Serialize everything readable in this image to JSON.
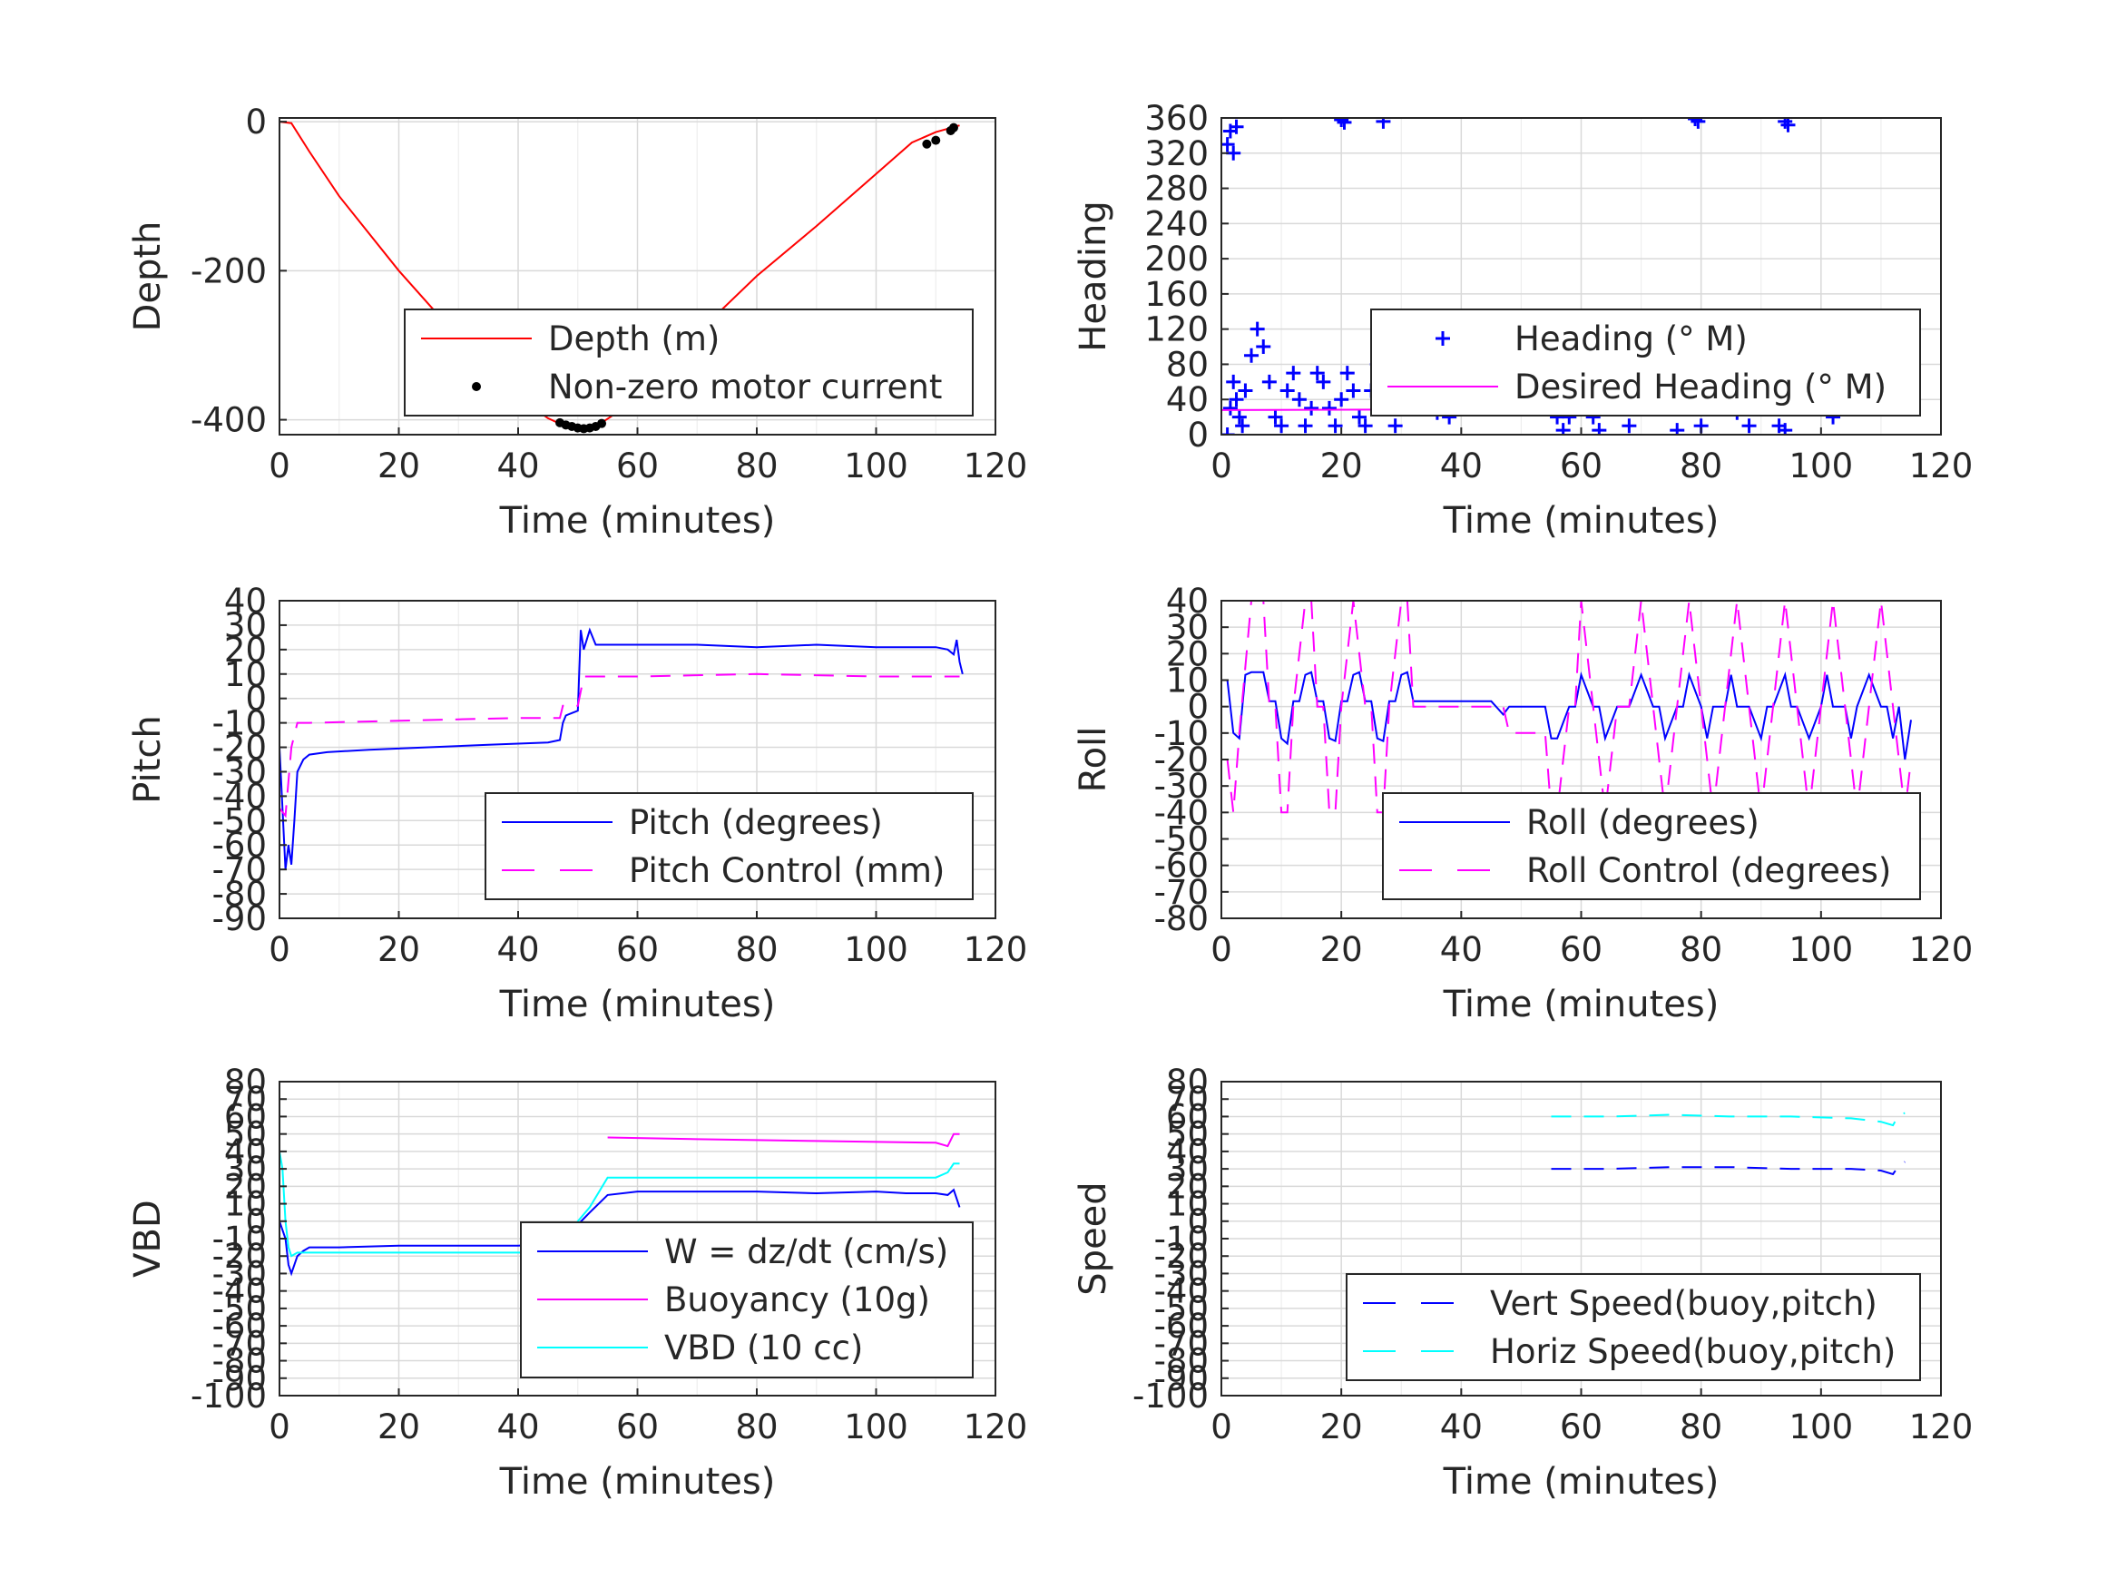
{
  "chart_data": [
    {
      "type": "line",
      "xlabel": "Time (minutes)",
      "ylabel": "Depth",
      "xlim": [
        0,
        120
      ],
      "ylim": [
        -420,
        5
      ],
      "xticks": [
        0,
        20,
        40,
        60,
        80,
        100,
        120
      ],
      "yticks": [
        0,
        -200,
        -400
      ],
      "grid": true,
      "legend_position": "lower-right",
      "series": [
        {
          "name": "Depth (m)",
          "style": "line",
          "color": "#ff0000",
          "x": [
            0,
            2,
            5,
            10,
            20,
            30,
            40,
            45,
            48,
            50,
            52,
            54,
            57,
            60,
            70,
            80,
            90,
            100,
            106,
            110,
            114
          ],
          "y": [
            0,
            -2,
            -40,
            -100,
            -200,
            -290,
            -370,
            -398,
            -409,
            -412,
            -411,
            -404,
            -388,
            -362,
            -284,
            -207,
            -140,
            -70,
            -28,
            -14,
            -5
          ]
        },
        {
          "name": "Non-zero motor current",
          "style": "marker",
          "color": "#000000",
          "x": [
            47,
            48,
            49,
            50,
            51,
            52,
            53,
            54,
            108.5,
            110,
            112.5,
            113
          ],
          "y": [
            -404,
            -407,
            -409,
            -411,
            -412,
            -411,
            -409,
            -405,
            -30,
            -25,
            -12,
            -8
          ]
        }
      ]
    },
    {
      "type": "scatter",
      "xlabel": "Time (minutes)",
      "ylabel": "Heading",
      "xlim": [
        0,
        120
      ],
      "ylim": [
        0,
        360
      ],
      "xticks": [
        0,
        20,
        40,
        60,
        80,
        100,
        120
      ],
      "yticks": [
        0,
        40,
        80,
        120,
        160,
        200,
        240,
        280,
        320,
        360
      ],
      "grid": true,
      "legend_position": "lower-right",
      "series": [
        {
          "name": "Heading (° M)",
          "style": "marker",
          "color": "#0000ff",
          "x": [
            1,
            1.5,
            2,
            2.5,
            3,
            3.5,
            4,
            5,
            6,
            7,
            8,
            9,
            10,
            11,
            12,
            13,
            14,
            15,
            16,
            17,
            18,
            19,
            20,
            21,
            22,
            23,
            24,
            25,
            26,
            27,
            28,
            29,
            30,
            31,
            32,
            34,
            36,
            38,
            40,
            42,
            44,
            46,
            48,
            50,
            52,
            53,
            54,
            55,
            56,
            57,
            58,
            59,
            60,
            61,
            62,
            63,
            64,
            65,
            66,
            67,
            68,
            70,
            72,
            74,
            76,
            78,
            79,
            80,
            82,
            84,
            86,
            88,
            90,
            92,
            93,
            94,
            96,
            98,
            100,
            102,
            104,
            106,
            108,
            110,
            112,
            114,
            20,
            20.5,
            27,
            79,
            79.5,
            94,
            94.5,
            1,
            1.5,
            2,
            2.5
          ],
          "y": [
            0,
            30,
            60,
            40,
            20,
            10,
            50,
            90,
            120,
            100,
            60,
            20,
            10,
            50,
            70,
            40,
            10,
            30,
            70,
            60,
            30,
            10,
            40,
            70,
            50,
            20,
            10,
            50,
            80,
            60,
            30,
            10,
            60,
            95,
            80,
            40,
            25,
            20,
            30,
            40,
            35,
            30,
            40,
            70,
            100,
            110,
            90,
            50,
            20,
            5,
            20,
            60,
            80,
            50,
            20,
            5,
            30,
            70,
            80,
            40,
            10,
            60,
            75,
            30,
            5,
            40,
            60,
            10,
            40,
            60,
            25,
            10,
            60,
            30,
            10,
            5,
            40,
            70,
            50,
            20,
            40,
            70,
            30,
            50,
            40,
            60,
            358,
            355,
            356,
            359,
            356,
            356,
            352,
            330,
            345,
            320,
            350
          ]
        },
        {
          "name": "Desired Heading (° M)",
          "style": "line",
          "color": "#ff00ff",
          "x": [
            0,
            114
          ],
          "y": [
            28,
            30
          ]
        }
      ]
    },
    {
      "type": "line",
      "xlabel": "Time (minutes)",
      "ylabel": "Pitch",
      "xlim": [
        0,
        120
      ],
      "ylim": [
        -90,
        40
      ],
      "xticks": [
        0,
        20,
        40,
        60,
        80,
        100,
        120
      ],
      "yticks": [
        40,
        30,
        20,
        10,
        0,
        -10,
        -20,
        -30,
        -40,
        -50,
        -60,
        -70,
        -80,
        -90
      ],
      "grid": true,
      "legend_position": "lower-right",
      "series": [
        {
          "name": "Pitch (degrees)",
          "style": "line",
          "color": "#0000ff",
          "x": [
            0,
            0.5,
            1,
            1.5,
            2,
            2.5,
            3,
            4,
            5,
            8,
            15,
            25,
            35,
            45,
            47,
            47.5,
            48,
            49,
            50,
            50.5,
            51,
            52,
            53,
            55,
            60,
            70,
            80,
            90,
            100,
            105,
            110,
            112,
            113,
            113.5,
            114,
            114.5
          ],
          "y": [
            -20,
            -45,
            -70,
            -60,
            -68,
            -50,
            -30,
            -25,
            -23,
            -22,
            -21,
            -20,
            -19,
            -18,
            -17,
            -10,
            -7,
            -6,
            -5,
            28,
            20,
            28,
            22,
            22,
            22,
            22,
            21,
            22,
            21,
            21,
            21,
            20,
            18,
            24,
            15,
            10
          ]
        },
        {
          "name": "Pitch Control (mm)",
          "style": "dashed",
          "color": "#ff00ff",
          "x": [
            0,
            1,
            2,
            3,
            4,
            5,
            40,
            47,
            47.5,
            48,
            50,
            51,
            60,
            80,
            100,
            114
          ],
          "y": [
            -45,
            -48,
            -20,
            -10,
            -10,
            -10,
            -8,
            -8,
            -3,
            -3,
            -3,
            9,
            9,
            10,
            9,
            9
          ]
        }
      ]
    },
    {
      "type": "line",
      "xlabel": "Time (minutes)",
      "ylabel": "Roll",
      "xlim": [
        0,
        120
      ],
      "ylim": [
        -80,
        40
      ],
      "xticks": [
        0,
        20,
        40,
        60,
        80,
        100,
        120
      ],
      "yticks": [
        40,
        30,
        20,
        10,
        0,
        -10,
        -20,
        -30,
        -40,
        -50,
        -60,
        -70,
        -80
      ],
      "grid": true,
      "legend_position": "lower-right",
      "series": [
        {
          "name": "Roll (degrees)",
          "style": "line",
          "color": "#0000ff",
          "x": [
            1,
            2,
            3,
            4,
            5,
            6,
            7,
            8,
            9,
            10,
            11,
            12,
            13,
            14,
            15,
            16,
            17,
            18,
            19,
            20,
            21,
            22,
            23,
            24,
            25,
            26,
            27,
            28,
            29,
            30,
            31,
            32,
            35,
            40,
            45,
            47,
            48,
            50,
            54,
            55,
            56,
            58,
            59,
            60,
            62,
            63,
            64,
            66,
            67,
            68,
            70,
            72,
            73,
            74,
            76,
            77,
            78,
            80,
            81,
            82,
            84,
            85,
            86,
            88,
            90,
            91,
            92,
            94,
            95,
            96,
            98,
            100,
            101,
            102,
            104,
            105,
            106,
            108,
            110,
            111,
            112,
            113,
            114,
            115
          ],
          "y": [
            10,
            -10,
            -12,
            12,
            13,
            13,
            13,
            2,
            2,
            -12,
            -14,
            2,
            2,
            12,
            13,
            2,
            2,
            -12,
            -13,
            2,
            2,
            12,
            13,
            2,
            2,
            -12,
            -13,
            2,
            2,
            12,
            13,
            2,
            2,
            2,
            2,
            -3,
            0,
            0,
            0,
            -12,
            -12,
            0,
            0,
            12,
            0,
            0,
            -12,
            0,
            0,
            0,
            12,
            0,
            0,
            -12,
            0,
            0,
            12,
            0,
            -12,
            0,
            0,
            12,
            0,
            0,
            -12,
            0,
            0,
            12,
            0,
            0,
            -12,
            0,
            12,
            0,
            0,
            -12,
            0,
            12,
            0,
            0,
            -12,
            0,
            -20,
            -5
          ]
        },
        {
          "name": "Roll Control (degrees)",
          "style": "dashed",
          "color": "#ff00ff",
          "x": [
            1,
            2,
            3,
            4,
            5,
            6,
            7,
            8,
            9,
            10,
            11,
            12,
            14,
            15,
            16,
            17,
            18,
            19,
            20,
            22,
            24,
            25,
            26,
            27,
            28,
            30,
            31,
            32,
            40,
            47,
            48,
            52,
            54,
            55,
            56,
            58,
            59,
            60,
            62,
            64,
            66,
            68,
            70,
            72,
            74,
            76,
            78,
            80,
            82,
            84,
            86,
            88,
            90,
            92,
            94,
            96,
            98,
            100,
            102,
            104,
            106,
            108,
            110,
            112,
            114,
            115
          ],
          "y": [
            -20,
            -40,
            -10,
            15,
            40,
            40,
            40,
            0,
            0,
            -40,
            -40,
            0,
            40,
            40,
            0,
            0,
            -40,
            -40,
            0,
            40,
            0,
            0,
            -40,
            -40,
            0,
            40,
            40,
            0,
            0,
            0,
            -10,
            -10,
            -10,
            -40,
            -40,
            0,
            0,
            40,
            0,
            -40,
            0,
            0,
            40,
            0,
            -40,
            0,
            40,
            0,
            -40,
            0,
            40,
            0,
            -40,
            0,
            40,
            0,
            -40,
            0,
            40,
            0,
            -40,
            0,
            40,
            0,
            -40,
            -20
          ]
        }
      ]
    },
    {
      "type": "line",
      "xlabel": "Time (minutes)",
      "ylabel": "VBD",
      "xlim": [
        0,
        120
      ],
      "ylim": [
        -100,
        80
      ],
      "xticks": [
        0,
        20,
        40,
        60,
        80,
        100,
        120
      ],
      "yticks": [
        80,
        70,
        60,
        50,
        40,
        30,
        20,
        10,
        0,
        -10,
        -20,
        -30,
        -40,
        -50,
        -60,
        -70,
        -80,
        -90,
        -100
      ],
      "grid": true,
      "legend_position": "lower-right",
      "series": [
        {
          "name": "W = dz/dt (cm/s)",
          "style": "line",
          "color": "#0000ff",
          "x": [
            0,
            0.5,
            1,
            1.5,
            2,
            2.5,
            3,
            4,
            5,
            10,
            20,
            30,
            40,
            45,
            47,
            48,
            50,
            52,
            55,
            60,
            70,
            80,
            90,
            100,
            105,
            110,
            112,
            113,
            114
          ],
          "y": [
            0,
            -5,
            -10,
            -25,
            -30,
            -25,
            -20,
            -17,
            -15,
            -15,
            -14,
            -14,
            -14,
            -13,
            -12,
            -8,
            -2,
            5,
            15,
            17,
            17,
            17,
            16,
            17,
            16,
            16,
            15,
            18,
            8
          ]
        },
        {
          "name": "Buoyancy (10g)",
          "style": "line",
          "color": "#ff00ff",
          "x": [
            55,
            70,
            90,
            110,
            112,
            113,
            114
          ],
          "y": [
            48,
            47,
            46,
            45,
            43,
            50,
            50
          ]
        },
        {
          "name": "VBD (10 cc)",
          "style": "line",
          "color": "#00ffff",
          "x": [
            0,
            0.5,
            1,
            1.5,
            2,
            3,
            5,
            47,
            50,
            52,
            55,
            60,
            80,
            100,
            110,
            112,
            113,
            114
          ],
          "y": [
            40,
            30,
            0,
            -15,
            -20,
            -18,
            -18,
            -18,
            0,
            8,
            25,
            25,
            25,
            25,
            25,
            28,
            33,
            33
          ]
        }
      ]
    },
    {
      "type": "line",
      "xlabel": "Time (minutes)",
      "ylabel": "Speed",
      "xlim": [
        0,
        120
      ],
      "ylim": [
        -100,
        80
      ],
      "xticks": [
        0,
        20,
        40,
        60,
        80,
        100,
        120
      ],
      "yticks": [
        80,
        70,
        60,
        50,
        40,
        30,
        20,
        10,
        0,
        -10,
        -20,
        -30,
        -40,
        -50,
        -60,
        -70,
        -80,
        -90,
        -100
      ],
      "grid": true,
      "legend_position": "lower-right",
      "series": [
        {
          "name": "Vert Speed(buoy,pitch)",
          "style": "dashed",
          "color": "#0000ff",
          "x": [
            55,
            65,
            75,
            85,
            95,
            105,
            110,
            112,
            113,
            114
          ],
          "y": [
            30,
            30,
            31,
            31,
            30,
            30,
            29,
            27,
            32,
            34
          ]
        },
        {
          "name": "Horiz Speed(buoy,pitch)",
          "style": "dashed",
          "color": "#00ffff",
          "x": [
            55,
            65,
            75,
            85,
            95,
            105,
            110,
            112,
            113,
            114
          ],
          "y": [
            60,
            60,
            61,
            60,
            60,
            59,
            57,
            55,
            61,
            62
          ]
        }
      ]
    }
  ]
}
